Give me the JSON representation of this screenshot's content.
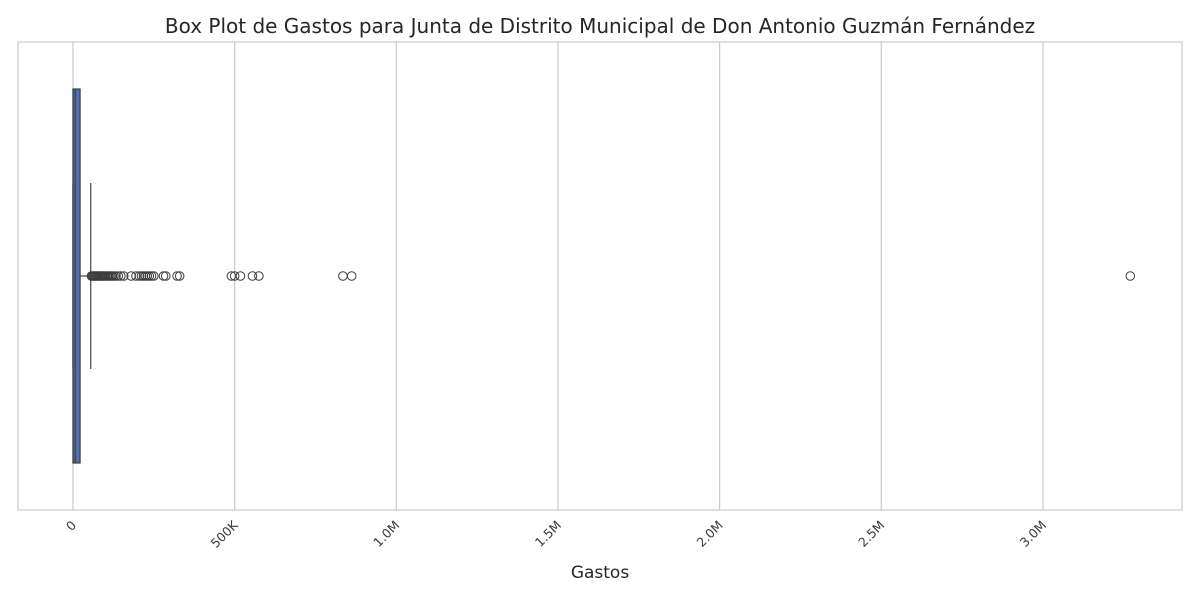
{
  "chart_data": {
    "type": "box",
    "orientation": "horizontal",
    "title": "Box Plot de Gastos para Junta de Distrito Municipal de Don Antonio Guzmán Fernández",
    "xlabel": "Gastos",
    "ylabel": "",
    "xlim": [
      -170000,
      3430000
    ],
    "grid": true,
    "xticks": [
      {
        "value": 0,
        "label": "0"
      },
      {
        "value": 500000,
        "label": "500K"
      },
      {
        "value": 1000000,
        "label": "1.0M"
      },
      {
        "value": 1500000,
        "label": "1.5M"
      },
      {
        "value": 2000000,
        "label": "2.0M"
      },
      {
        "value": 2500000,
        "label": "2.5M"
      },
      {
        "value": 3000000,
        "label": "3.0M"
      }
    ],
    "box": {
      "whisker_low": 0,
      "q1": 0,
      "median": 7000,
      "q3": 22000,
      "whisker_high": 55000,
      "color": "#4c72b0"
    },
    "outliers": [
      57000,
      60000,
      63000,
      66000,
      69000,
      72000,
      75000,
      78000,
      81000,
      84000,
      87000,
      90000,
      93000,
      96000,
      99000,
      102000,
      106000,
      110000,
      114000,
      118000,
      122000,
      127000,
      133000,
      140000,
      148000,
      157000,
      180000,
      195000,
      205000,
      212000,
      218000,
      224000,
      230000,
      236000,
      243000,
      250000,
      280000,
      287000,
      322000,
      330000,
      490000,
      500000,
      518000,
      555000,
      575000,
      835000,
      862000,
      3270000
    ]
  }
}
